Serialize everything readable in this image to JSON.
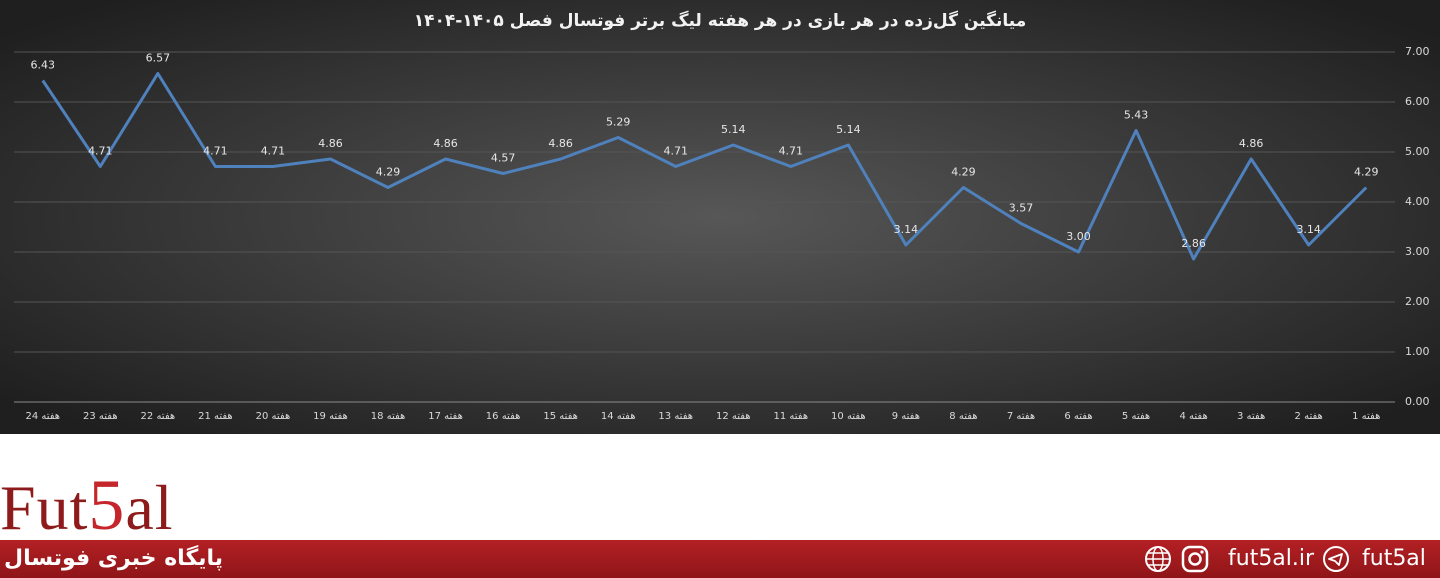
{
  "chart_data": {
    "type": "line",
    "title": "میانگین گل‌زده در هر بازی در هر هفته لیگ برتر فوتسال فصل ۱۴۰۵-۱۴۰۴",
    "categories": [
      "هفته 24",
      "هفته 23",
      "هفته 22",
      "هفته 21",
      "هفته 20",
      "هفته 19",
      "هفته 18",
      "هفته 17",
      "هفته 16",
      "هفته 15",
      "هفته 14",
      "هفته 13",
      "هفته 12",
      "هفته 11",
      "هفته 10",
      "هفته 9",
      "هفته 8",
      "هفته 7",
      "هفته 6",
      "هفته 5",
      "هفته 4",
      "هفته 3",
      "هفته 2",
      "هفته 1"
    ],
    "values": [
      6.43,
      4.71,
      6.57,
      4.71,
      4.71,
      4.86,
      4.29,
      4.86,
      4.57,
      4.86,
      5.29,
      4.71,
      5.14,
      4.71,
      5.14,
      3.14,
      4.29,
      3.57,
      3.0,
      5.43,
      2.86,
      4.86,
      3.14,
      4.29
    ],
    "value_labels": [
      "6.43",
      "4.71",
      "6.57",
      "4.71",
      "4.71",
      "4.86",
      "4.29",
      "4.86",
      "4.57",
      "4.86",
      "5.29",
      "4.71",
      "5.14",
      "4.71",
      "5.14",
      "3.14",
      "4.29",
      "3.57",
      "3.00",
      "5.43",
      "2.86",
      "4.86",
      "3.14",
      "4.29"
    ],
    "color": "#4f81bd",
    "ylim": [
      0,
      7
    ],
    "yticks": [
      {
        "value": 0,
        "label": "0.00"
      },
      {
        "value": 1,
        "label": "1.00"
      },
      {
        "value": 2,
        "label": "2.00"
      },
      {
        "value": 3,
        "label": "3.00"
      },
      {
        "value": 4,
        "label": "4.00"
      },
      {
        "value": 5,
        "label": "5.00"
      },
      {
        "value": 6,
        "label": "6.00"
      },
      {
        "value": 7,
        "label": "7.00"
      }
    ],
    "grid": true
  },
  "footer": {
    "logo": [
      "Fut",
      "5",
      "al"
    ],
    "tagline": "پایگاه خبری فوتسال",
    "website": "fut5al.ir",
    "telegram": "fut5al"
  }
}
